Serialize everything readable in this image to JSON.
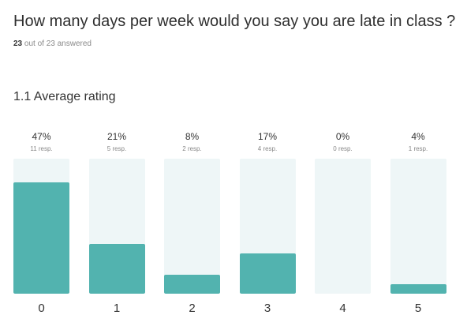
{
  "question": {
    "title": "How many days per week would you say you are late in class ?",
    "answered_count": "23",
    "answered_suffix": " out of 23 answered"
  },
  "section": {
    "title": "1.1 Average rating"
  },
  "colors": {
    "bar_fill": "#52b3af",
    "bar_track": "#eef6f7"
  },
  "chart_data": {
    "type": "bar",
    "categories": [
      "0",
      "1",
      "2",
      "3",
      "4",
      "5"
    ],
    "values": [
      47,
      21,
      8,
      17,
      0,
      4
    ],
    "percent_labels": [
      "47%",
      "21%",
      "8%",
      "17%",
      "0%",
      "4%"
    ],
    "responses": [
      11,
      5,
      2,
      4,
      0,
      1
    ],
    "response_labels": [
      "11 resp.",
      "5 resp.",
      "2 resp.",
      "4 resp.",
      "0 resp.",
      "1 resp."
    ],
    "ylim": [
      0,
      100
    ]
  }
}
